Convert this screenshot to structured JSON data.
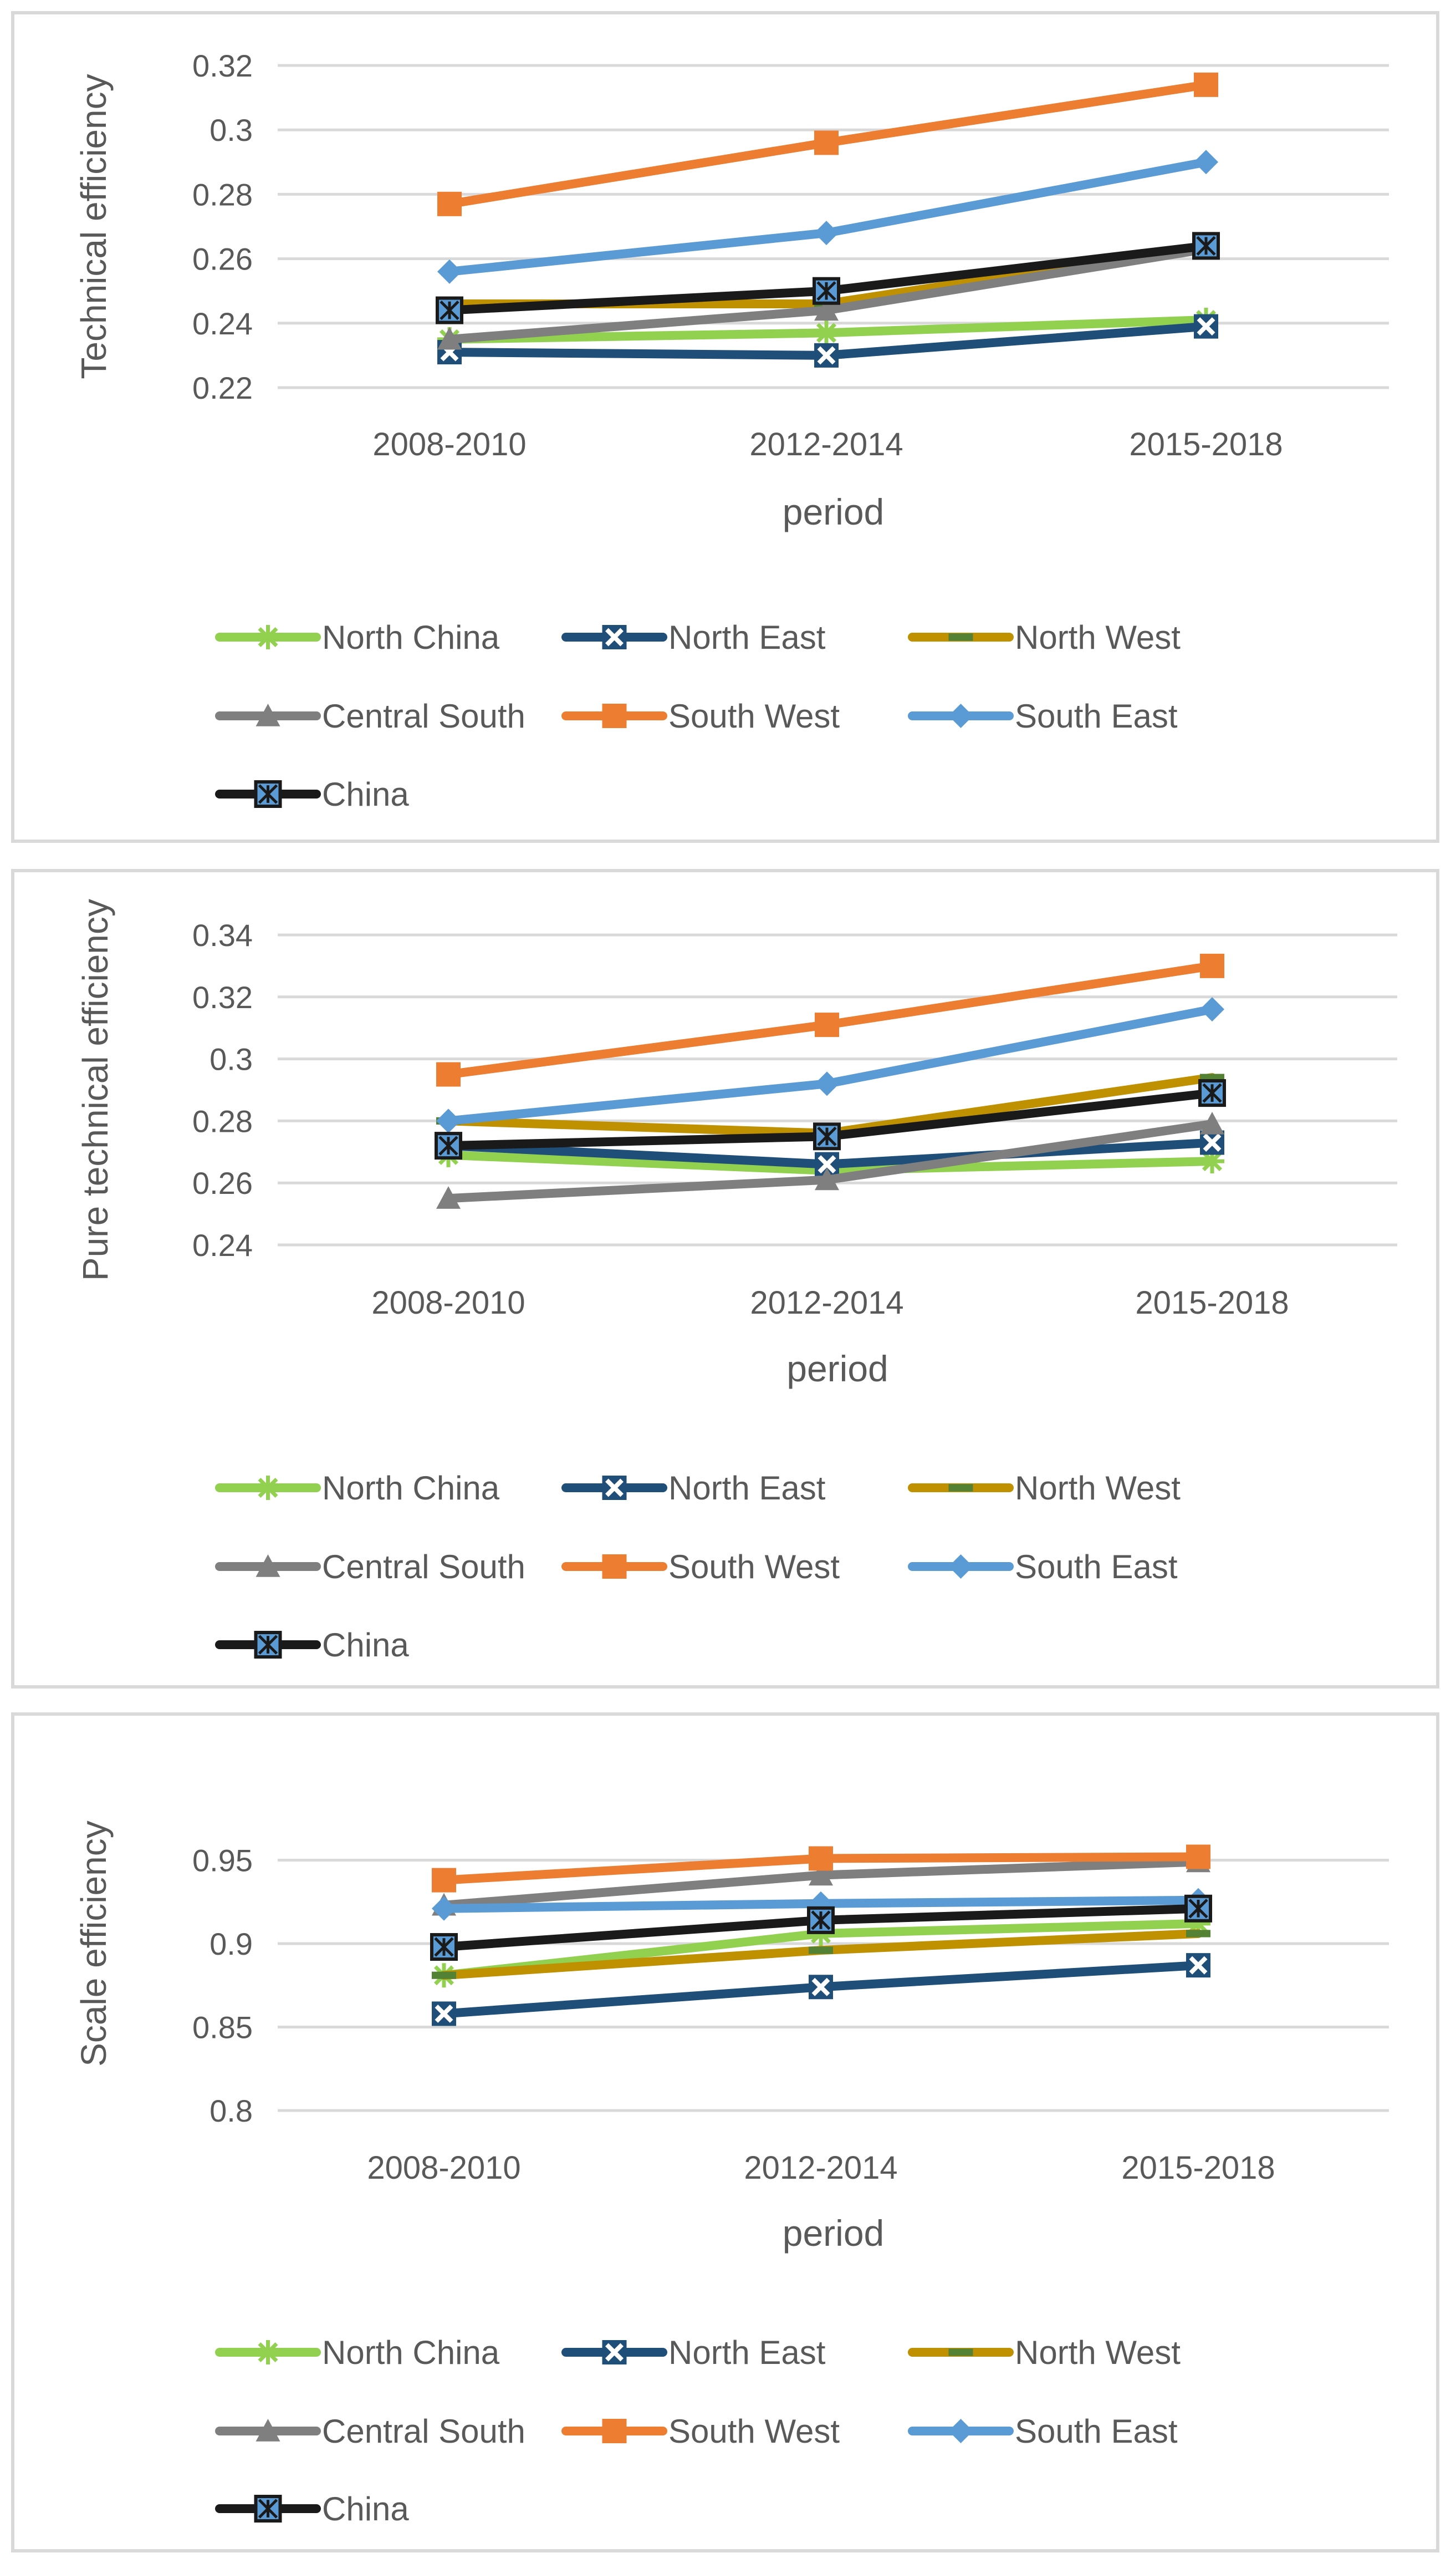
{
  "chart_data": [
    {
      "type": "line",
      "title": "",
      "xlabel": "period",
      "ylabel": "Technical efficiency",
      "categories": [
        "2008-2010",
        "2012-2014",
        "2015-2018"
      ],
      "ylim": [
        0.22,
        0.32
      ],
      "yticks": [
        0.22,
        0.24,
        0.26,
        0.28,
        0.3,
        0.32
      ],
      "ytick_labels": [
        "0.22",
        "0.24",
        "0.26",
        "0.28",
        "0.3",
        "0.32"
      ],
      "grid": true,
      "legend_position": "bottom",
      "series": [
        {
          "name": "North China",
          "values": [
            0.235,
            0.237,
            0.241
          ]
        },
        {
          "name": "North East",
          "values": [
            0.231,
            0.23,
            0.239
          ]
        },
        {
          "name": "North West",
          "values": [
            0.246,
            0.246,
            0.264
          ]
        },
        {
          "name": "Central South",
          "values": [
            0.235,
            0.244,
            0.263
          ]
        },
        {
          "name": "South West",
          "values": [
            0.277,
            0.296,
            0.314
          ]
        },
        {
          "name": "South East",
          "values": [
            0.256,
            0.268,
            0.29
          ]
        },
        {
          "name": "China",
          "values": [
            0.244,
            0.25,
            0.264
          ]
        }
      ]
    },
    {
      "type": "line",
      "title": "",
      "xlabel": "period",
      "ylabel": "Pure technical efficiency",
      "categories": [
        "2008-2010",
        "2012-2014",
        "2015-2018"
      ],
      "ylim": [
        0.24,
        0.34
      ],
      "yticks": [
        0.24,
        0.26,
        0.28,
        0.3,
        0.32,
        0.34
      ],
      "ytick_labels": [
        "0.24",
        "0.26",
        "0.28",
        "0.3",
        "0.32",
        "0.34"
      ],
      "grid": true,
      "legend_position": "bottom",
      "series": [
        {
          "name": "North China",
          "values": [
            0.269,
            0.264,
            0.267
          ]
        },
        {
          "name": "North East",
          "values": [
            0.272,
            0.266,
            0.273
          ]
        },
        {
          "name": "North West",
          "values": [
            0.28,
            0.276,
            0.294
          ]
        },
        {
          "name": "Central South",
          "values": [
            0.255,
            0.261,
            0.279
          ]
        },
        {
          "name": "South West",
          "values": [
            0.295,
            0.311,
            0.33
          ]
        },
        {
          "name": "South East",
          "values": [
            0.28,
            0.292,
            0.316
          ]
        },
        {
          "name": "China",
          "values": [
            0.272,
            0.275,
            0.289
          ]
        }
      ]
    },
    {
      "type": "line",
      "title": "",
      "xlabel": "period",
      "ylabel": "Scale efficiency",
      "categories": [
        "2008-2010",
        "2012-2014",
        "2015-2018"
      ],
      "ylim": [
        0.8,
        1.0
      ],
      "yticks": [
        0.8,
        0.85,
        0.9,
        0.95
      ],
      "ytick_labels": [
        "0.8",
        "0.85",
        "0.9",
        "0.95"
      ],
      "grid": true,
      "legend_position": "bottom",
      "series": [
        {
          "name": "North China",
          "values": [
            0.881,
            0.906,
            0.912
          ]
        },
        {
          "name": "North East",
          "values": [
            0.858,
            0.874,
            0.887
          ]
        },
        {
          "name": "North West",
          "values": [
            0.881,
            0.896,
            0.906
          ]
        },
        {
          "name": "Central South",
          "values": [
            0.923,
            0.941,
            0.949
          ]
        },
        {
          "name": "South West",
          "values": [
            0.938,
            0.951,
            0.952
          ]
        },
        {
          "name": "South East",
          "values": [
            0.921,
            0.924,
            0.926
          ]
        },
        {
          "name": "China",
          "values": [
            0.898,
            0.914,
            0.921
          ]
        }
      ]
    }
  ],
  "styles": {
    "North China": {
      "color": "#92d050",
      "marker": "asterisk",
      "marker_fill": "#92d050"
    },
    "North East": {
      "color": "#1f4e79",
      "marker": "x-box",
      "marker_fill": "#ffffff"
    },
    "North West": {
      "color": "#bf9000",
      "marker": "dash",
      "marker_fill": "#548235"
    },
    "Central South": {
      "color": "#7f7f7f",
      "marker": "triangle",
      "marker_fill": "#7f7f7f"
    },
    "South West": {
      "color": "#ed7d31",
      "marker": "square",
      "marker_fill": "#ed7d31"
    },
    "South East": {
      "color": "#5b9bd5",
      "marker": "diamond",
      "marker_fill": "#5b9bd5"
    },
    "China": {
      "color": "#1a1a1a",
      "marker": "star-box",
      "marker_fill": "#5b9bd5"
    }
  },
  "gridline_color": "#d9d9d9"
}
